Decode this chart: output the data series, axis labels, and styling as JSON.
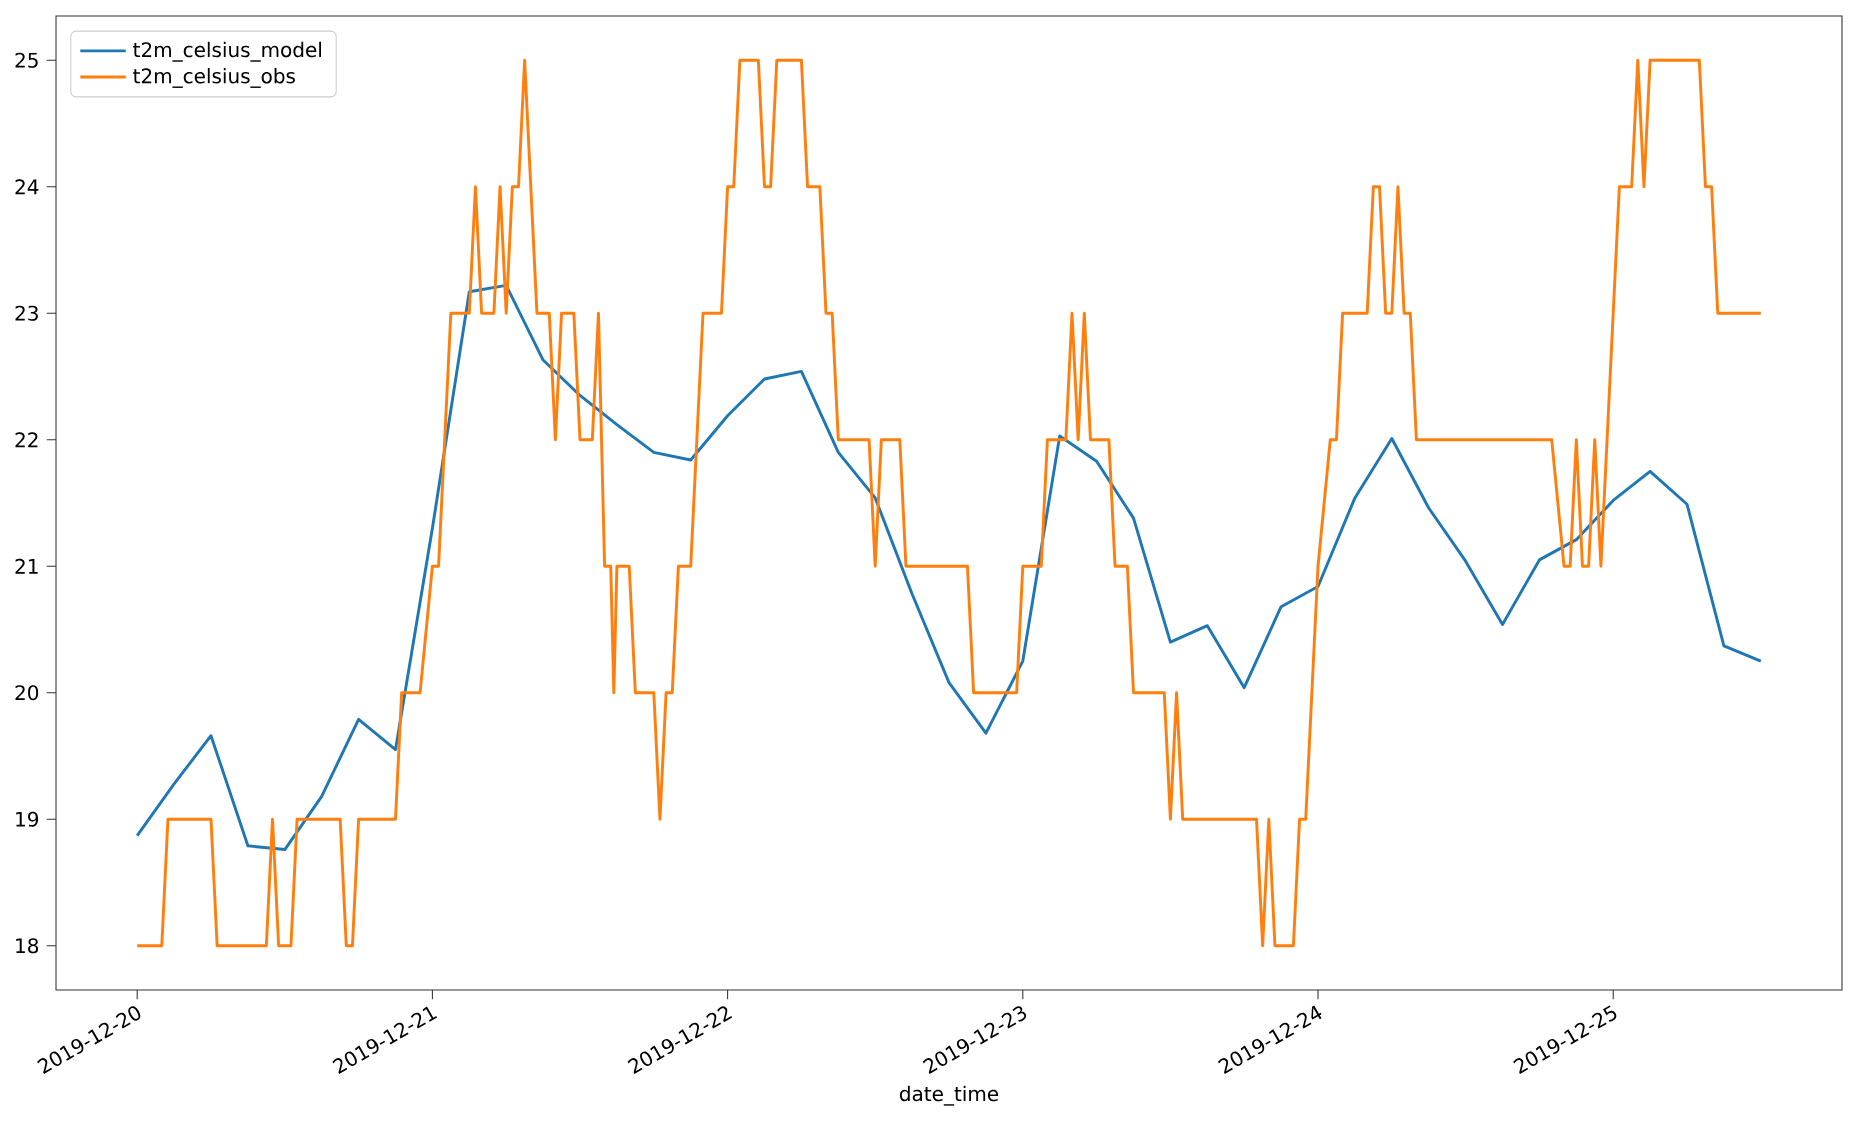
{
  "chart_data": {
    "type": "line",
    "xlabel": "date_time",
    "legend": "top left",
    "line_style": "solid",
    "xlim": [
      "2019-12-19T17:24",
      "2019-12-25T18:36"
    ],
    "ylim": [
      17.65,
      25.35
    ],
    "xticks": [
      {
        "value": "2019-12-20",
        "label": "2019-12-20"
      },
      {
        "value": "2019-12-21",
        "label": "2019-12-21"
      },
      {
        "value": "2019-12-22",
        "label": "2019-12-22"
      },
      {
        "value": "2019-12-23",
        "label": "2019-12-23"
      },
      {
        "value": "2019-12-24",
        "label": "2019-12-24"
      },
      {
        "value": "2019-12-25",
        "label": "2019-12-25"
      }
    ],
    "yticks": [
      18,
      19,
      20,
      21,
      22,
      23,
      24,
      25
    ],
    "series": [
      {
        "name": "t2m_celsius_model",
        "color": "#1f77b4",
        "x": [
          "2019-12-20T00:00",
          "2019-12-20T03:00",
          "2019-12-20T06:00",
          "2019-12-20T09:00",
          "2019-12-20T12:00",
          "2019-12-20T15:00",
          "2019-12-20T18:00",
          "2019-12-20T21:00",
          "2019-12-21T00:00",
          "2019-12-21T03:00",
          "2019-12-21T06:00",
          "2019-12-21T09:00",
          "2019-12-21T12:00",
          "2019-12-21T15:00",
          "2019-12-21T18:00",
          "2019-12-21T21:00",
          "2019-12-22T00:00",
          "2019-12-22T03:00",
          "2019-12-22T06:00",
          "2019-12-22T09:00",
          "2019-12-22T12:00",
          "2019-12-22T15:00",
          "2019-12-22T18:00",
          "2019-12-22T21:00",
          "2019-12-23T00:00",
          "2019-12-23T03:00",
          "2019-12-23T06:00",
          "2019-12-23T09:00",
          "2019-12-23T12:00",
          "2019-12-23T15:00",
          "2019-12-23T18:00",
          "2019-12-23T21:00",
          "2019-12-24T00:00",
          "2019-12-24T03:00",
          "2019-12-24T06:00",
          "2019-12-24T09:00",
          "2019-12-24T12:00",
          "2019-12-24T15:00",
          "2019-12-24T18:00",
          "2019-12-24T21:00",
          "2019-12-25T00:00",
          "2019-12-25T03:00",
          "2019-12-25T06:00",
          "2019-12-25T09:00",
          "2019-12-25T12:00"
        ],
        "values": [
          18.87,
          19.28,
          19.66,
          18.79,
          18.76,
          19.18,
          19.79,
          19.55,
          21.3,
          23.17,
          23.22,
          22.63,
          22.35,
          22.12,
          21.9,
          21.84,
          22.19,
          22.48,
          22.54,
          21.9,
          21.54,
          20.78,
          20.08,
          19.68,
          20.25,
          22.03,
          21.83,
          21.38,
          20.4,
          20.53,
          20.04,
          20.68,
          20.84,
          21.54,
          22.01,
          21.46,
          21.04,
          20.54,
          21.05,
          21.21,
          21.52,
          21.75,
          21.49,
          20.37,
          20.25
        ]
      },
      {
        "name": "t2m_celsius_obs",
        "color": "#ff7f0e",
        "x": [
          "2019-12-20T00:00",
          "2019-12-20T02:00",
          "2019-12-20T02:30",
          "2019-12-20T06:00",
          "2019-12-20T06:30",
          "2019-12-20T10:30",
          "2019-12-20T11:00",
          "2019-12-20T11:30",
          "2019-12-20T12:30",
          "2019-12-20T13:00",
          "2019-12-20T16:30",
          "2019-12-20T17:00",
          "2019-12-20T17:30",
          "2019-12-20T18:00",
          "2019-12-20T21:00",
          "2019-12-20T21:30",
          "2019-12-20T23:00",
          "2019-12-21T00:00",
          "2019-12-21T00:30",
          "2019-12-21T01:30",
          "2019-12-21T03:00",
          "2019-12-21T03:30",
          "2019-12-21T04:00",
          "2019-12-21T05:00",
          "2019-12-21T05:30",
          "2019-12-21T06:00",
          "2019-12-21T06:30",
          "2019-12-21T07:00",
          "2019-12-21T07:30",
          "2019-12-21T08:30",
          "2019-12-21T09:30",
          "2019-12-21T10:00",
          "2019-12-21T10:30",
          "2019-12-21T11:30",
          "2019-12-21T12:00",
          "2019-12-21T13:00",
          "2019-12-21T13:30",
          "2019-12-21T14:00",
          "2019-12-21T14:30",
          "2019-12-21T14:45",
          "2019-12-21T15:00",
          "2019-12-21T16:00",
          "2019-12-21T16:30",
          "2019-12-21T18:00",
          "2019-12-21T18:30",
          "2019-12-21T19:00",
          "2019-12-21T19:30",
          "2019-12-21T20:00",
          "2019-12-21T21:00",
          "2019-12-21T22:00",
          "2019-12-21T23:30",
          "2019-12-22T00:00",
          "2019-12-22T00:30",
          "2019-12-22T01:00",
          "2019-12-22T02:30",
          "2019-12-22T03:00",
          "2019-12-22T03:30",
          "2019-12-22T04:00",
          "2019-12-22T06:00",
          "2019-12-22T06:30",
          "2019-12-22T07:30",
          "2019-12-22T08:00",
          "2019-12-22T08:30",
          "2019-12-22T09:00",
          "2019-12-22T11:30",
          "2019-12-22T12:00",
          "2019-12-22T12:30",
          "2019-12-22T14:00",
          "2019-12-22T14:30",
          "2019-12-22T19:30",
          "2019-12-22T20:00",
          "2019-12-22T23:30",
          "2019-12-23T00:00",
          "2019-12-23T01:30",
          "2019-12-23T02:00",
          "2019-12-23T03:30",
          "2019-12-23T04:00",
          "2019-12-23T04:30",
          "2019-12-23T05:00",
          "2019-12-23T05:30",
          "2019-12-23T07:00",
          "2019-12-23T07:30",
          "2019-12-23T08:30",
          "2019-12-23T09:00",
          "2019-12-23T11:30",
          "2019-12-23T12:00",
          "2019-12-23T12:30",
          "2019-12-23T13:00",
          "2019-12-23T19:00",
          "2019-12-23T19:30",
          "2019-12-23T20:00",
          "2019-12-23T20:30",
          "2019-12-23T22:00",
          "2019-12-23T22:30",
          "2019-12-23T23:00",
          "2019-12-24T00:00",
          "2019-12-24T01:00",
          "2019-12-24T01:30",
          "2019-12-24T02:00",
          "2019-12-24T04:00",
          "2019-12-24T04:30",
          "2019-12-24T05:00",
          "2019-12-24T05:30",
          "2019-12-24T06:00",
          "2019-12-24T06:30",
          "2019-12-24T07:00",
          "2019-12-24T07:30",
          "2019-12-24T08:00",
          "2019-12-24T19:00",
          "2019-12-24T20:00",
          "2019-12-24T20:30",
          "2019-12-24T21:00",
          "2019-12-24T21:30",
          "2019-12-24T22:00",
          "2019-12-24T22:30",
          "2019-12-24T23:00",
          "2019-12-25T00:30",
          "2019-12-25T01:30",
          "2019-12-25T02:00",
          "2019-12-25T02:30",
          "2019-12-25T03:00",
          "2019-12-25T07:00",
          "2019-12-25T07:30",
          "2019-12-25T08:00",
          "2019-12-25T08:30",
          "2019-12-25T12:00"
        ],
        "values": [
          18,
          18,
          19,
          19,
          18,
          18,
          19,
          18,
          18,
          19,
          19,
          18,
          18,
          19,
          19,
          20,
          20,
          21,
          21,
          23,
          23,
          24,
          23,
          23,
          24,
          23,
          24,
          24,
          25,
          23,
          23,
          22,
          23,
          23,
          22,
          22,
          23,
          21,
          21,
          20,
          21,
          21,
          20,
          20,
          19,
          20,
          20,
          21,
          21,
          23,
          23,
          24,
          24,
          25,
          25,
          24,
          24,
          25,
          25,
          24,
          24,
          23,
          23,
          22,
          22,
          21,
          22,
          22,
          21,
          21,
          20,
          20,
          21,
          21,
          22,
          22,
          23,
          22,
          23,
          22,
          22,
          21,
          21,
          20,
          20,
          19,
          20,
          19,
          19,
          18,
          19,
          18,
          18,
          19,
          19,
          21,
          22,
          22,
          23,
          23,
          24,
          24,
          23,
          23,
          24,
          23,
          23,
          22,
          22,
          21,
          21,
          22,
          21,
          21,
          22,
          21,
          24,
          24,
          25,
          24,
          25,
          25,
          24,
          24,
          23,
          23
        ]
      }
    ]
  }
}
